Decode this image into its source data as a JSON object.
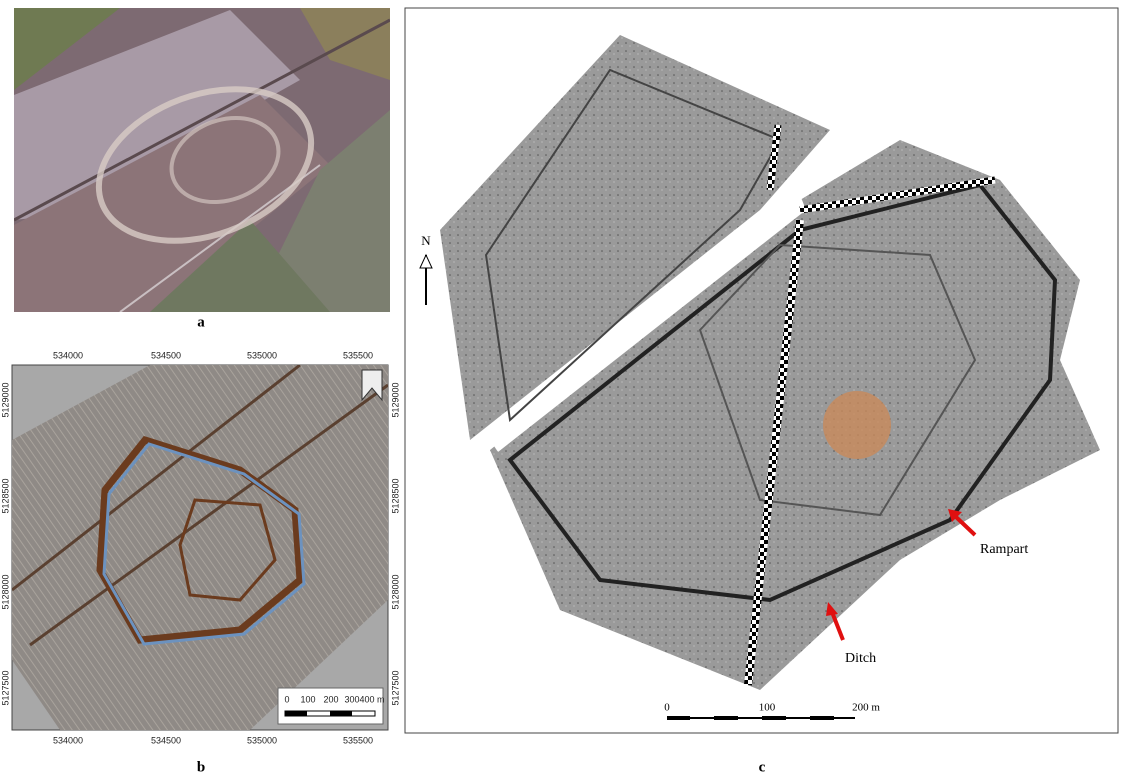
{
  "panels": {
    "a": {
      "label": "a"
    },
    "b": {
      "label": "b",
      "x_ticks": [
        "534000",
        "534500",
        "535000",
        "535500"
      ],
      "y_ticks": [
        "5129000",
        "5128500",
        "5128000",
        "5127500"
      ],
      "scale_labels": [
        "0",
        "100",
        "200",
        "300",
        "400 m"
      ]
    },
    "c": {
      "label": "c",
      "north": "N",
      "scale_labels": [
        "0",
        "100",
        "200 m"
      ],
      "annotations": {
        "rampart": "Rampart",
        "ditch": "Ditch"
      }
    }
  }
}
